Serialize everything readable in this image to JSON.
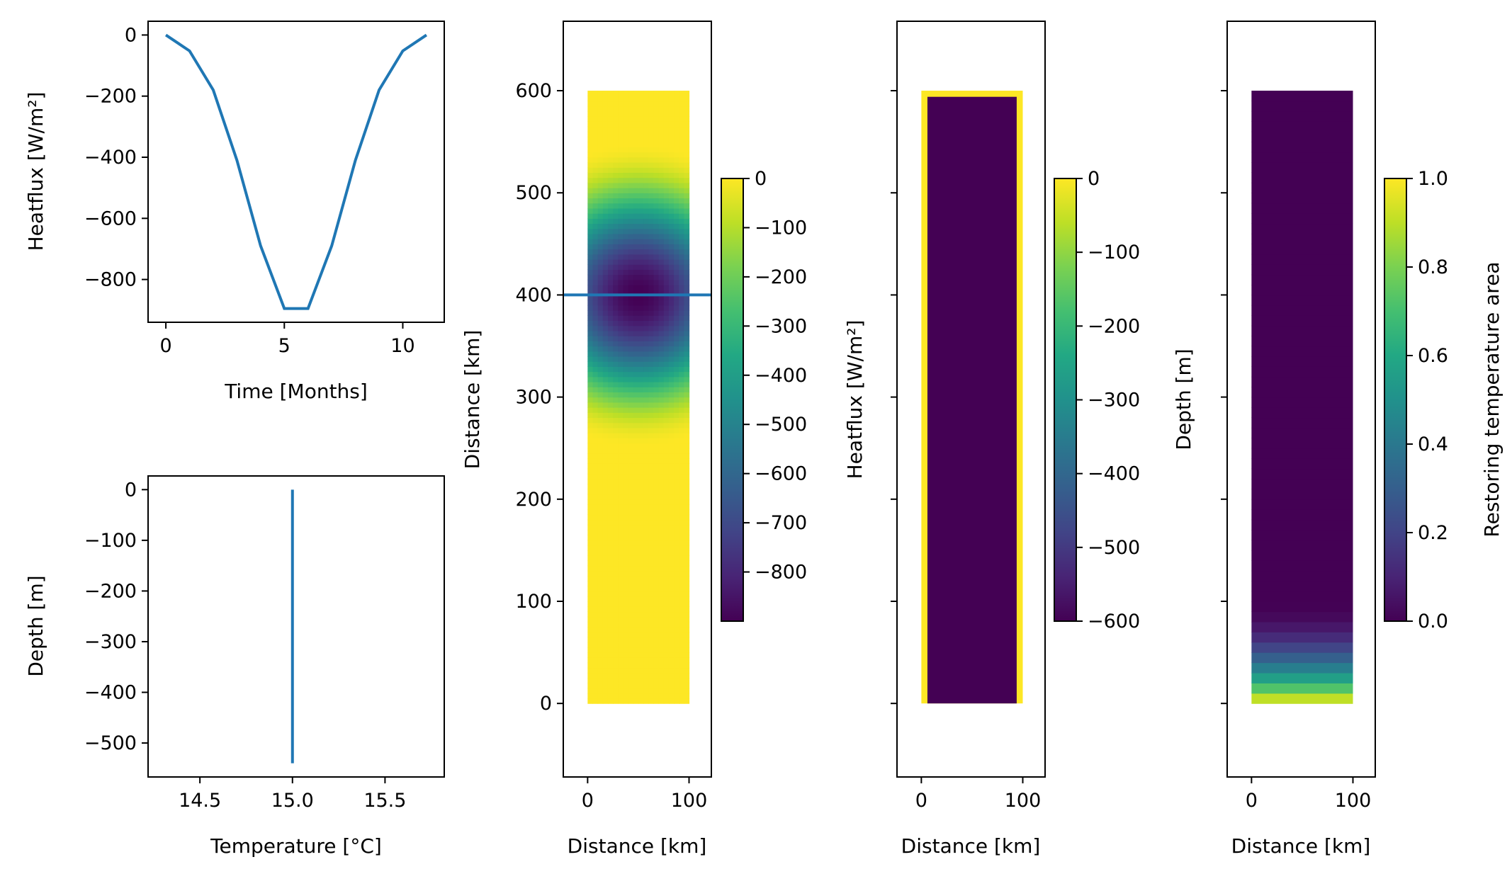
{
  "figure": {
    "line_color": "#1f77b4"
  },
  "chart_data": [
    {
      "id": "heatflux-ts",
      "type": "line",
      "title": "",
      "xlabel": "Time [Months]",
      "ylabel": "Heatflux [W/m²]",
      "xlim": [
        -0.75,
        11.75
      ],
      "ylim": [
        -940,
        45
      ],
      "xticks": [
        0,
        5,
        10
      ],
      "yticks": [
        0,
        -200,
        -400,
        -600,
        -800
      ],
      "x": [
        0,
        1,
        2,
        3,
        4,
        5,
        6,
        7,
        8,
        9,
        10,
        11
      ],
      "y": [
        0,
        -52,
        -180,
        -410,
        -690,
        -895,
        -895,
        -690,
        -410,
        -180,
        -52,
        0
      ]
    },
    {
      "id": "temp-profile",
      "type": "line",
      "title": "",
      "xlabel": "Temperature [°C]",
      "ylabel": "Depth [m]",
      "xlim": [
        14.22,
        15.82
      ],
      "ylim": [
        -567,
        27
      ],
      "xticks": [
        14.5,
        15.0,
        15.5
      ],
      "yticks": [
        0,
        -100,
        -200,
        -300,
        -400,
        -500
      ],
      "x": [
        15.0,
        15.0
      ],
      "y": [
        0,
        -540
      ]
    },
    {
      "id": "heatflux-map",
      "type": "heatmap",
      "xlabel": "Distance [km]",
      "ylabel": "Distance [km]",
      "xlim": [
        -24,
        122
      ],
      "ylim": [
        -72,
        668
      ],
      "xticks": [
        0,
        100
      ],
      "yticks": [
        0,
        100,
        200,
        300,
        400,
        500,
        600
      ],
      "field": {
        "x_range": [
          0,
          100
        ],
        "y_range": [
          0,
          600
        ],
        "center_x": 50,
        "center_y": 400,
        "radius_km": 150,
        "min": -900,
        "max": 0
      },
      "hline": 400,
      "colorbar": {
        "label": "Heatflux [W/m²]",
        "range": [
          -900,
          0
        ],
        "ticks": [
          0,
          -100,
          -200,
          -300,
          -400,
          -500,
          -600,
          -700,
          -800
        ]
      }
    },
    {
      "id": "depth-map",
      "type": "heatmap",
      "xlabel": "Distance [km]",
      "ylabel": "",
      "xlim": [
        -24,
        122
      ],
      "ylim": [
        -72,
        668
      ],
      "xticks": [
        0,
        100
      ],
      "field": {
        "x_range": [
          0,
          100
        ],
        "y_range": [
          0,
          600
        ],
        "wall_depth": 0,
        "interior_depth": -600,
        "wall_width_km": 6
      },
      "colorbar": {
        "label": "Depth [m]",
        "range": [
          -600,
          0
        ],
        "ticks": [
          0,
          -100,
          -200,
          -300,
          -400,
          -500,
          -600
        ]
      }
    },
    {
      "id": "restoring-map",
      "type": "heatmap",
      "xlabel": "Distance [km]",
      "ylabel": "",
      "xlim": [
        -24,
        122
      ],
      "ylim": [
        -72,
        668
      ],
      "xticks": [
        0,
        100
      ],
      "field": {
        "x_range": [
          0,
          100
        ],
        "y_range": [
          0,
          600
        ],
        "ramp_top_km": 100,
        "ramp_bottom_km": 0
      },
      "colorbar": {
        "label": "Restoring temperature area",
        "range": [
          0,
          1
        ],
        "ticks": [
          "0.0",
          "0.2",
          "0.4",
          "0.6",
          "0.8",
          "1.0"
        ]
      }
    }
  ]
}
